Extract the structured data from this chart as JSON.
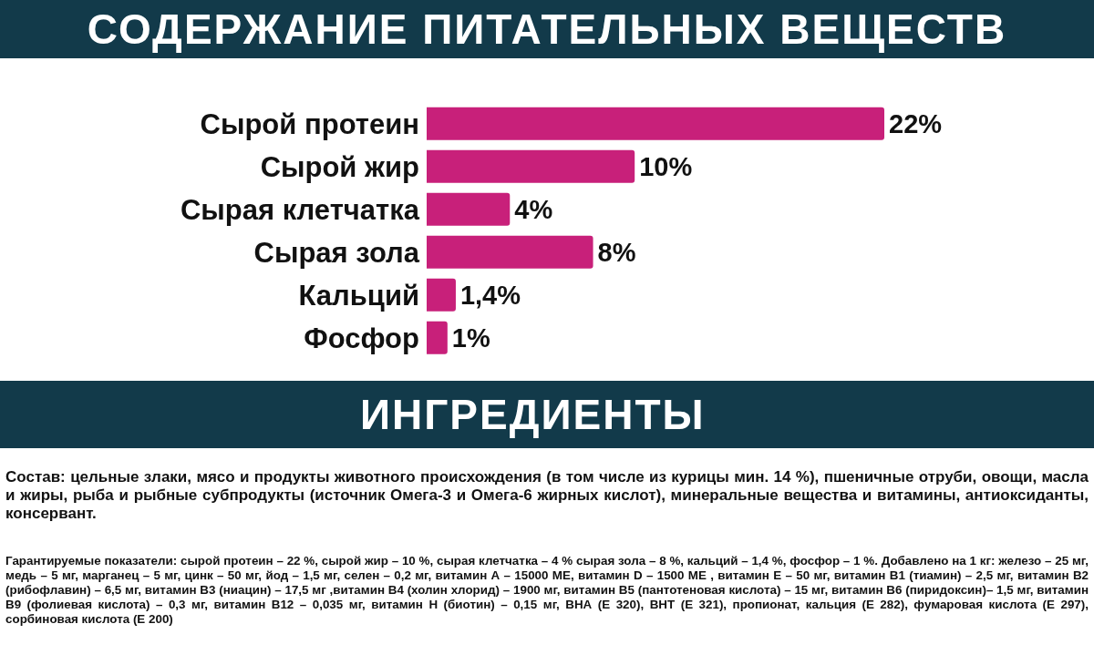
{
  "chart_data": {
    "type": "bar",
    "orientation": "horizontal",
    "title": "СОДЕРЖАНИЕ ПИТАТЕЛЬНЫХ ВЕЩЕСТВ",
    "categories": [
      "Сырой протеин",
      "Сырой жир",
      "Сырая клетчатка",
      "Сырая зола",
      "Кальций",
      "Фосфор"
    ],
    "values": [
      22,
      10,
      4,
      8,
      1.4,
      1
    ],
    "value_labels": [
      "22%",
      "10%",
      "4%",
      "8%",
      "1,4%",
      "1%"
    ],
    "color": "#c8207a",
    "annotations": [
      "ИНГРЕДИЕНТЫ",
      "Состав: цельные злаки, мясо и продукты животного происхождения (в том числе из курицы мин. 14 %), пшеничные отруби, овощи, масла и жиры, рыба и рыбные субпродукты (источник Омега-3 и Омега-6 жирных кислот), минеральные вещества и витамины, антиоксиданты, консервант.",
      "Гарантируемые показатели: сырой протеин – 22 %, сырой жир – 10 %, сырая клетчатка – 4 % сырая зола – 8 %, кальций – 1,4 %, фосфор – 1 %. Добавлено на 1 кг: железо – 25 мг, медь – 5 мг, марганец – 5 мг, цинк – 50 мг, йод – 1,5 мг, селен – 0,2 мг, витамин А – 15000 МЕ, витамин D – 1500 МЕ , витамин Е – 50 мг, витамин В1 (тиамин) – 2,5 мг, витамин В2 (рибофлавин) – 6,5 мг, витамин В3 (ниацин) – 17,5 мг ,витамин В4 (холин хлорид) – 1900 мг, витамин В5 (пантотеновая кислота) – 15 мг, витамин В6 (пиридоксин)– 1,5 мг, витамин В9 (фолиевая кислота) – 0,3 мг, витамин В12 – 0,035 мг, витамин Н (биотин) – 0,15 мг, ВНА (Е 320), ВНТ (Е 321), пропионат, кальция (Е 282), фумаровая кислота (Е 297), сорбиновая кислота (Е 200)"
    ]
  }
}
